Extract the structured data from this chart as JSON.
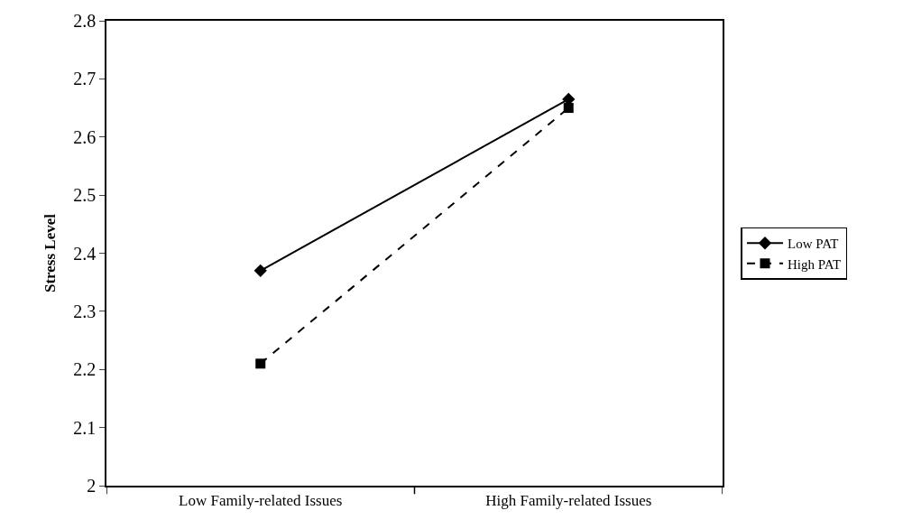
{
  "chart_data": {
    "type": "line",
    "ylabel": "Stress Level",
    "categories": [
      "Low Family-related Issues",
      "High Family-related Issues"
    ],
    "series": [
      {
        "name": "Low PAT",
        "color": "#000000",
        "values": [
          2.37,
          2.665
        ],
        "marker": "diamond",
        "line_style": "solid"
      },
      {
        "name": "High PAT",
        "color": "#000000",
        "values": [
          2.21,
          2.65
        ],
        "marker": "square",
        "line_style": "dashed"
      }
    ],
    "ylim": [
      2,
      2.8
    ],
    "yticks": [
      2,
      2.1,
      2.2,
      2.3,
      2.4,
      2.5,
      2.6,
      2.7,
      2.8
    ],
    "legend": "right"
  }
}
